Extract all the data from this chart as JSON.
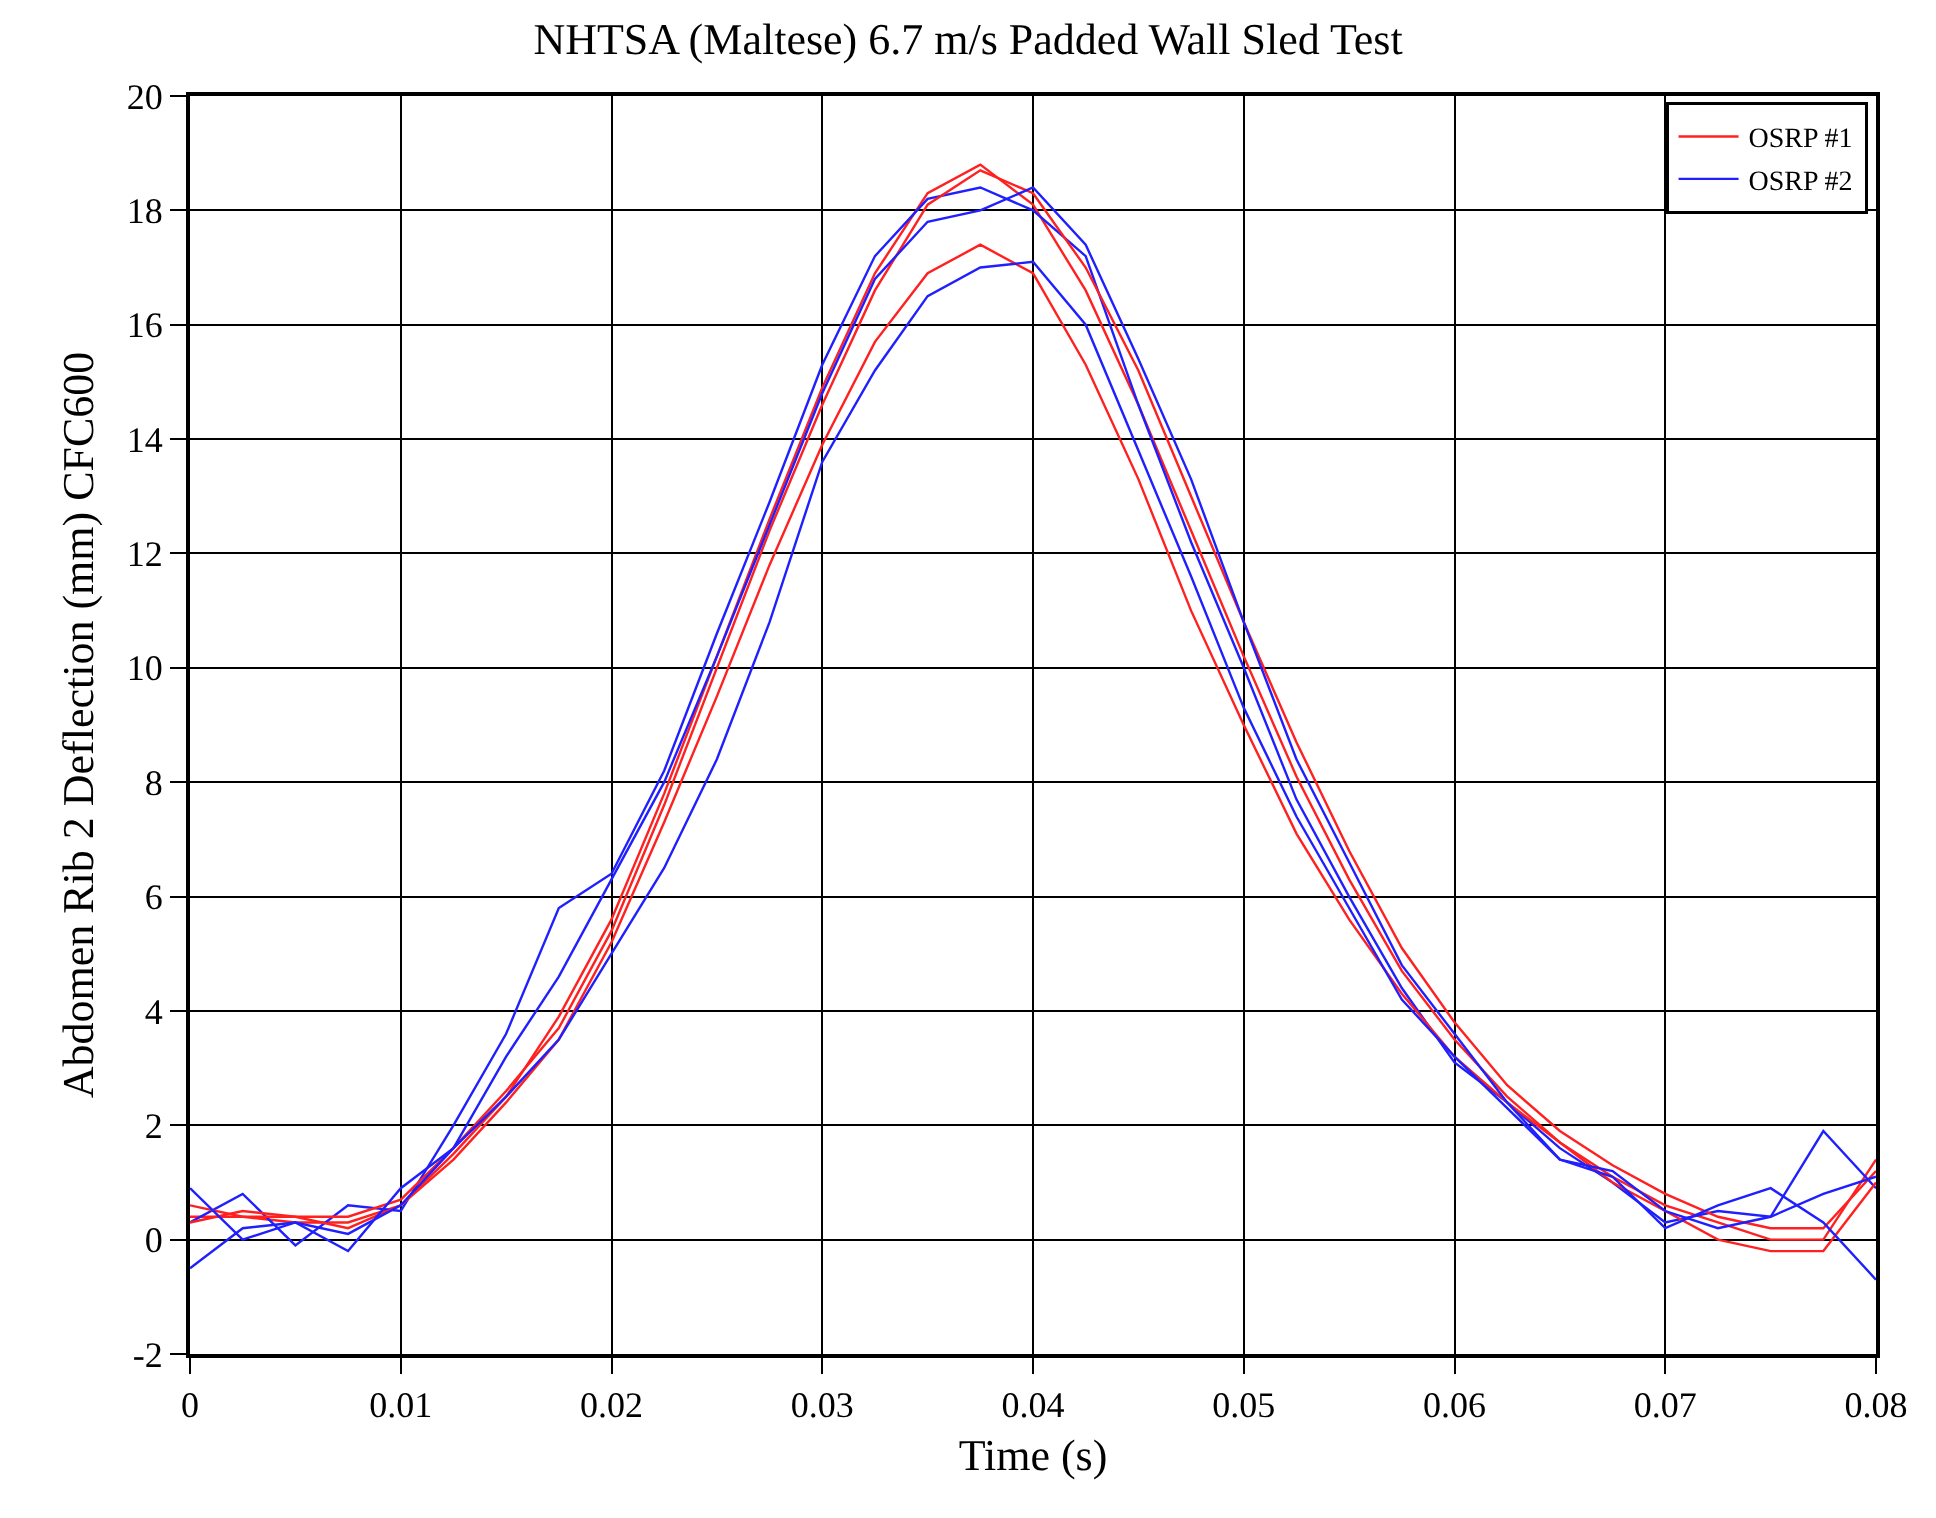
{
  "chart_data": {
    "type": "line",
    "title": "NHTSA (Maltese) 6.7 m/s Padded Wall Sled Test",
    "xlabel": "Time (s)",
    "ylabel": "Abdomen Rib 2 Deflection (mm) CFC600",
    "x": [
      0,
      0.0025,
      0.005,
      0.0075,
      0.01,
      0.0125,
      0.015,
      0.0175,
      0.02,
      0.0225,
      0.025,
      0.0275,
      0.03,
      0.0325,
      0.035,
      0.0375,
      0.04,
      0.0425,
      0.045,
      0.0475,
      0.05,
      0.0525,
      0.055,
      0.0575,
      0.06,
      0.0625,
      0.065,
      0.0675,
      0.07,
      0.0725,
      0.075,
      0.0775,
      0.08
    ],
    "series": [
      {
        "name": "OSRP #1",
        "color": "#ff2020",
        "values": [
          0.4,
          0.4,
          0.3,
          0.3,
          0.6,
          1.5,
          2.5,
          3.9,
          5.6,
          7.8,
          10.2,
          12.6,
          14.9,
          16.9,
          18.3,
          18.8,
          18.1,
          16.6,
          14.6,
          12.4,
          10.2,
          8.1,
          6.3,
          4.7,
          3.5,
          2.5,
          1.7,
          1.1,
          0.6,
          0.3,
          0.0,
          0.0,
          1.4
        ]
      },
      {
        "name": "OSRP #2",
        "color": "#2020ff",
        "values": [
          0.3,
          0.8,
          -0.1,
          0.6,
          0.5,
          2.0,
          3.6,
          5.8,
          6.4,
          8.2,
          10.6,
          12.9,
          15.3,
          17.2,
          18.2,
          18.4,
          18.0,
          17.2,
          14.6,
          12.2,
          10.0,
          7.7,
          6.0,
          4.4,
          3.1,
          2.4,
          1.6,
          1.0,
          0.3,
          0.5,
          0.4,
          1.9,
          0.9
        ]
      },
      {
        "color": "#ff2020",
        "values": [
          0.3,
          0.5,
          0.4,
          0.4,
          0.7,
          1.6,
          2.6,
          3.7,
          5.4,
          7.6,
          10.0,
          12.4,
          14.6,
          16.6,
          18.1,
          18.7,
          18.3,
          17.0,
          15.2,
          13.0,
          10.8,
          8.7,
          6.8,
          5.1,
          3.8,
          2.7,
          1.9,
          1.3,
          0.8,
          0.4,
          0.2,
          0.2,
          1.2
        ]
      },
      {
        "color": "#ff2020",
        "values": [
          0.6,
          0.4,
          0.4,
          0.2,
          0.6,
          1.4,
          2.4,
          3.5,
          5.2,
          7.3,
          9.5,
          11.8,
          13.9,
          15.7,
          16.9,
          17.4,
          16.9,
          15.3,
          13.3,
          11.0,
          9.0,
          7.1,
          5.6,
          4.3,
          3.2,
          2.4,
          1.7,
          1.0,
          0.5,
          0.0,
          -0.2,
          -0.2,
          1.0
        ]
      },
      {
        "color": "#2020ff",
        "values": [
          -0.5,
          0.2,
          0.3,
          -0.2,
          0.9,
          1.6,
          3.2,
          4.6,
          6.3,
          8.0,
          10.2,
          12.5,
          14.8,
          16.8,
          17.8,
          18.0,
          18.4,
          17.4,
          15.4,
          13.3,
          10.8,
          8.4,
          6.6,
          4.8,
          3.6,
          2.4,
          1.4,
          1.1,
          0.2,
          0.6,
          0.9,
          0.3,
          -0.7
        ]
      },
      {
        "color": "#2020ff",
        "values": [
          0.9,
          0.0,
          0.3,
          0.1,
          0.6,
          1.6,
          2.5,
          3.5,
          5.0,
          6.5,
          8.4,
          10.8,
          13.6,
          15.2,
          16.5,
          17.0,
          17.1,
          16.0,
          13.8,
          11.6,
          9.3,
          7.4,
          5.8,
          4.2,
          3.2,
          2.3,
          1.4,
          1.2,
          0.5,
          0.2,
          0.4,
          0.8,
          1.1
        ]
      }
    ],
    "xlim": [
      0,
      0.08
    ],
    "xticks": [
      0,
      0.01,
      0.02,
      0.03,
      0.04,
      0.05,
      0.06,
      0.07,
      0.08
    ],
    "ylim": [
      -2,
      20
    ],
    "yticks": [
      -2,
      0,
      2,
      4,
      6,
      8,
      10,
      12,
      14,
      16,
      18,
      20
    ],
    "grid": true,
    "legend": "top right",
    "line_style": "solid",
    "marker": "none"
  }
}
